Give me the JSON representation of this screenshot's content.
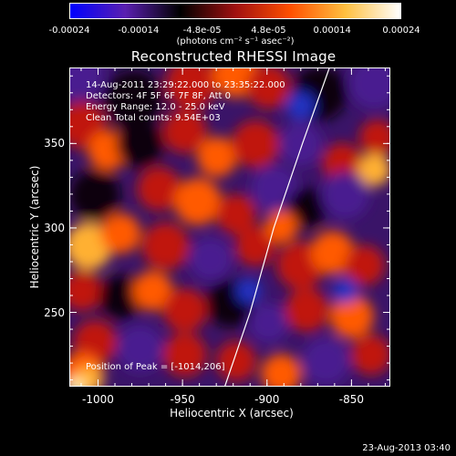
{
  "colorbar": {
    "ticks": [
      "-0.00024",
      "-0.00014",
      "-4.8e-05",
      "4.8e-05",
      "0.00014",
      "0.00024"
    ],
    "tick_values": [
      -0.00024,
      -0.00014,
      -4.8e-05,
      4.8e-05,
      0.00014,
      0.00024
    ],
    "range": [
      -0.00024,
      0.00024
    ],
    "unit": "(photons cm⁻² s⁻¹ asec⁻²)",
    "colors": [
      "#0000ff",
      "#5a1fb0",
      "#000000",
      "#a01010",
      "#ff5000",
      "#ffc040",
      "#ffffff"
    ]
  },
  "header": {
    "title": "Reconstructed RHESSI Image"
  },
  "annotations": {
    "time": "14-Aug-2011 23:29:22.000 to 23:35:22.000",
    "detectors": "Detectors: 4F 5F 6F 7F 8F, Att 0",
    "energy": "Energy Range: 12.0 - 25.0 keV",
    "clean": "Clean    Total counts: 9.54E+03",
    "peak": "Position of Peak = [-1014,206]"
  },
  "footer": {
    "timestamp": "23-Aug-2013 03:40"
  },
  "chart_data": {
    "type": "heatmap",
    "title": "Reconstructed RHESSI Image",
    "xlabel": "Heliocentric X (arcsec)",
    "ylabel": "Heliocentric Y (arcsec)",
    "xlim": [
      -1017,
      -827
    ],
    "ylim": [
      206,
      395
    ],
    "xticks": [
      -1000,
      -950,
      -900,
      -850
    ],
    "xtick_labels": [
      "-1000",
      "-950",
      "-900",
      "-850"
    ],
    "yticks": [
      250,
      300,
      350
    ],
    "ytick_labels": [
      "250",
      "300",
      "350"
    ],
    "limb_curve": [
      [
        -925,
        206
      ],
      [
        -910,
        250
      ],
      [
        -896,
        300
      ],
      [
        -879,
        350
      ],
      [
        -863,
        395
      ]
    ],
    "peak": [
      -1014,
      206
    ]
  }
}
